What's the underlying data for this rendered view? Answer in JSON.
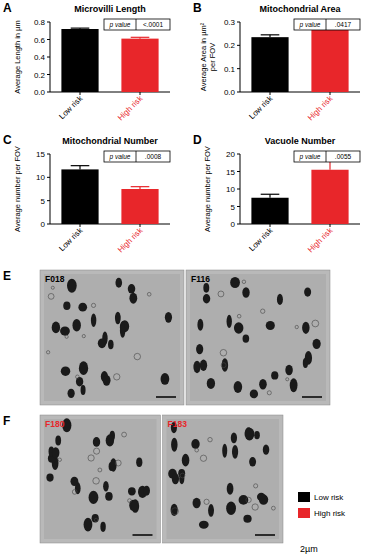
{
  "chart_data": [
    {
      "type": "bar",
      "title": "Microvilli Length",
      "y_label": "Average Length in µm",
      "categories": [
        "Low risk",
        "High risk"
      ],
      "values": [
        0.72,
        0.61
      ],
      "errors": [
        0.01,
        0.015
      ],
      "colors": [
        "#000000",
        "#e8262a"
      ],
      "ylim": [
        0,
        0.8
      ],
      "yticks": [
        {
          "value": 0,
          "label": "0.0"
        },
        0.2,
        0.4,
        0.6,
        0.8
      ],
      "annotations": [
        "A",
        "p value",
        "<.0001"
      ]
    },
    {
      "type": "bar",
      "title": "Mitochondrial Area",
      "y_label": "Average Area in µm²\nper FOV",
      "categories": [
        "Low risk",
        "High risk"
      ],
      "values": [
        0.235,
        0.27
      ],
      "errors": [
        0.01,
        0.01
      ],
      "colors": [
        "#000000",
        "#e8262a"
      ],
      "ylim": [
        0,
        0.3
      ],
      "yticks": [
        {
          "value": 0,
          "label": "0.0"
        },
        0.1,
        0.2,
        0.3
      ],
      "annotations": [
        "B",
        "p value",
        ".0417"
      ]
    },
    {
      "type": "bar",
      "title": "Mitochondrial Number",
      "y_label": "Average number per FOV",
      "categories": [
        "Low risk",
        "High risk"
      ],
      "values": [
        11.7,
        7.5
      ],
      "errors": [
        0.8,
        0.5
      ],
      "colors": [
        "#000000",
        "#e8262a"
      ],
      "ylim": [
        0,
        15
      ],
      "yticks": [
        0,
        5,
        10,
        15
      ],
      "annotations": [
        "C",
        "p value",
        ".0008"
      ]
    },
    {
      "type": "bar",
      "title": "Vacuole Number",
      "y_label": "Average number per FOV",
      "categories": [
        "Low risk",
        "High risk"
      ],
      "values": [
        7.5,
        15.5
      ],
      "errors": [
        1.0,
        2.5
      ],
      "colors": [
        "#000000",
        "#e8262a"
      ],
      "ylim": [
        0,
        20
      ],
      "yticks": [
        0,
        5,
        10,
        15,
        20
      ],
      "annotations": [
        "D",
        "p value",
        ".0055"
      ]
    }
  ],
  "images": {
    "panels": [
      {
        "letter": "E",
        "labels": [
          "F018",
          "F116"
        ],
        "color": "#000000"
      },
      {
        "letter": "F",
        "labels": [
          "F180",
          "F183"
        ],
        "color": "#e8262a"
      }
    ],
    "legend": [
      {
        "text": "Low risk",
        "color": "#000000"
      },
      {
        "text": "High risk",
        "color": "#e8262a"
      }
    ],
    "scale_bar": "2µm"
  }
}
